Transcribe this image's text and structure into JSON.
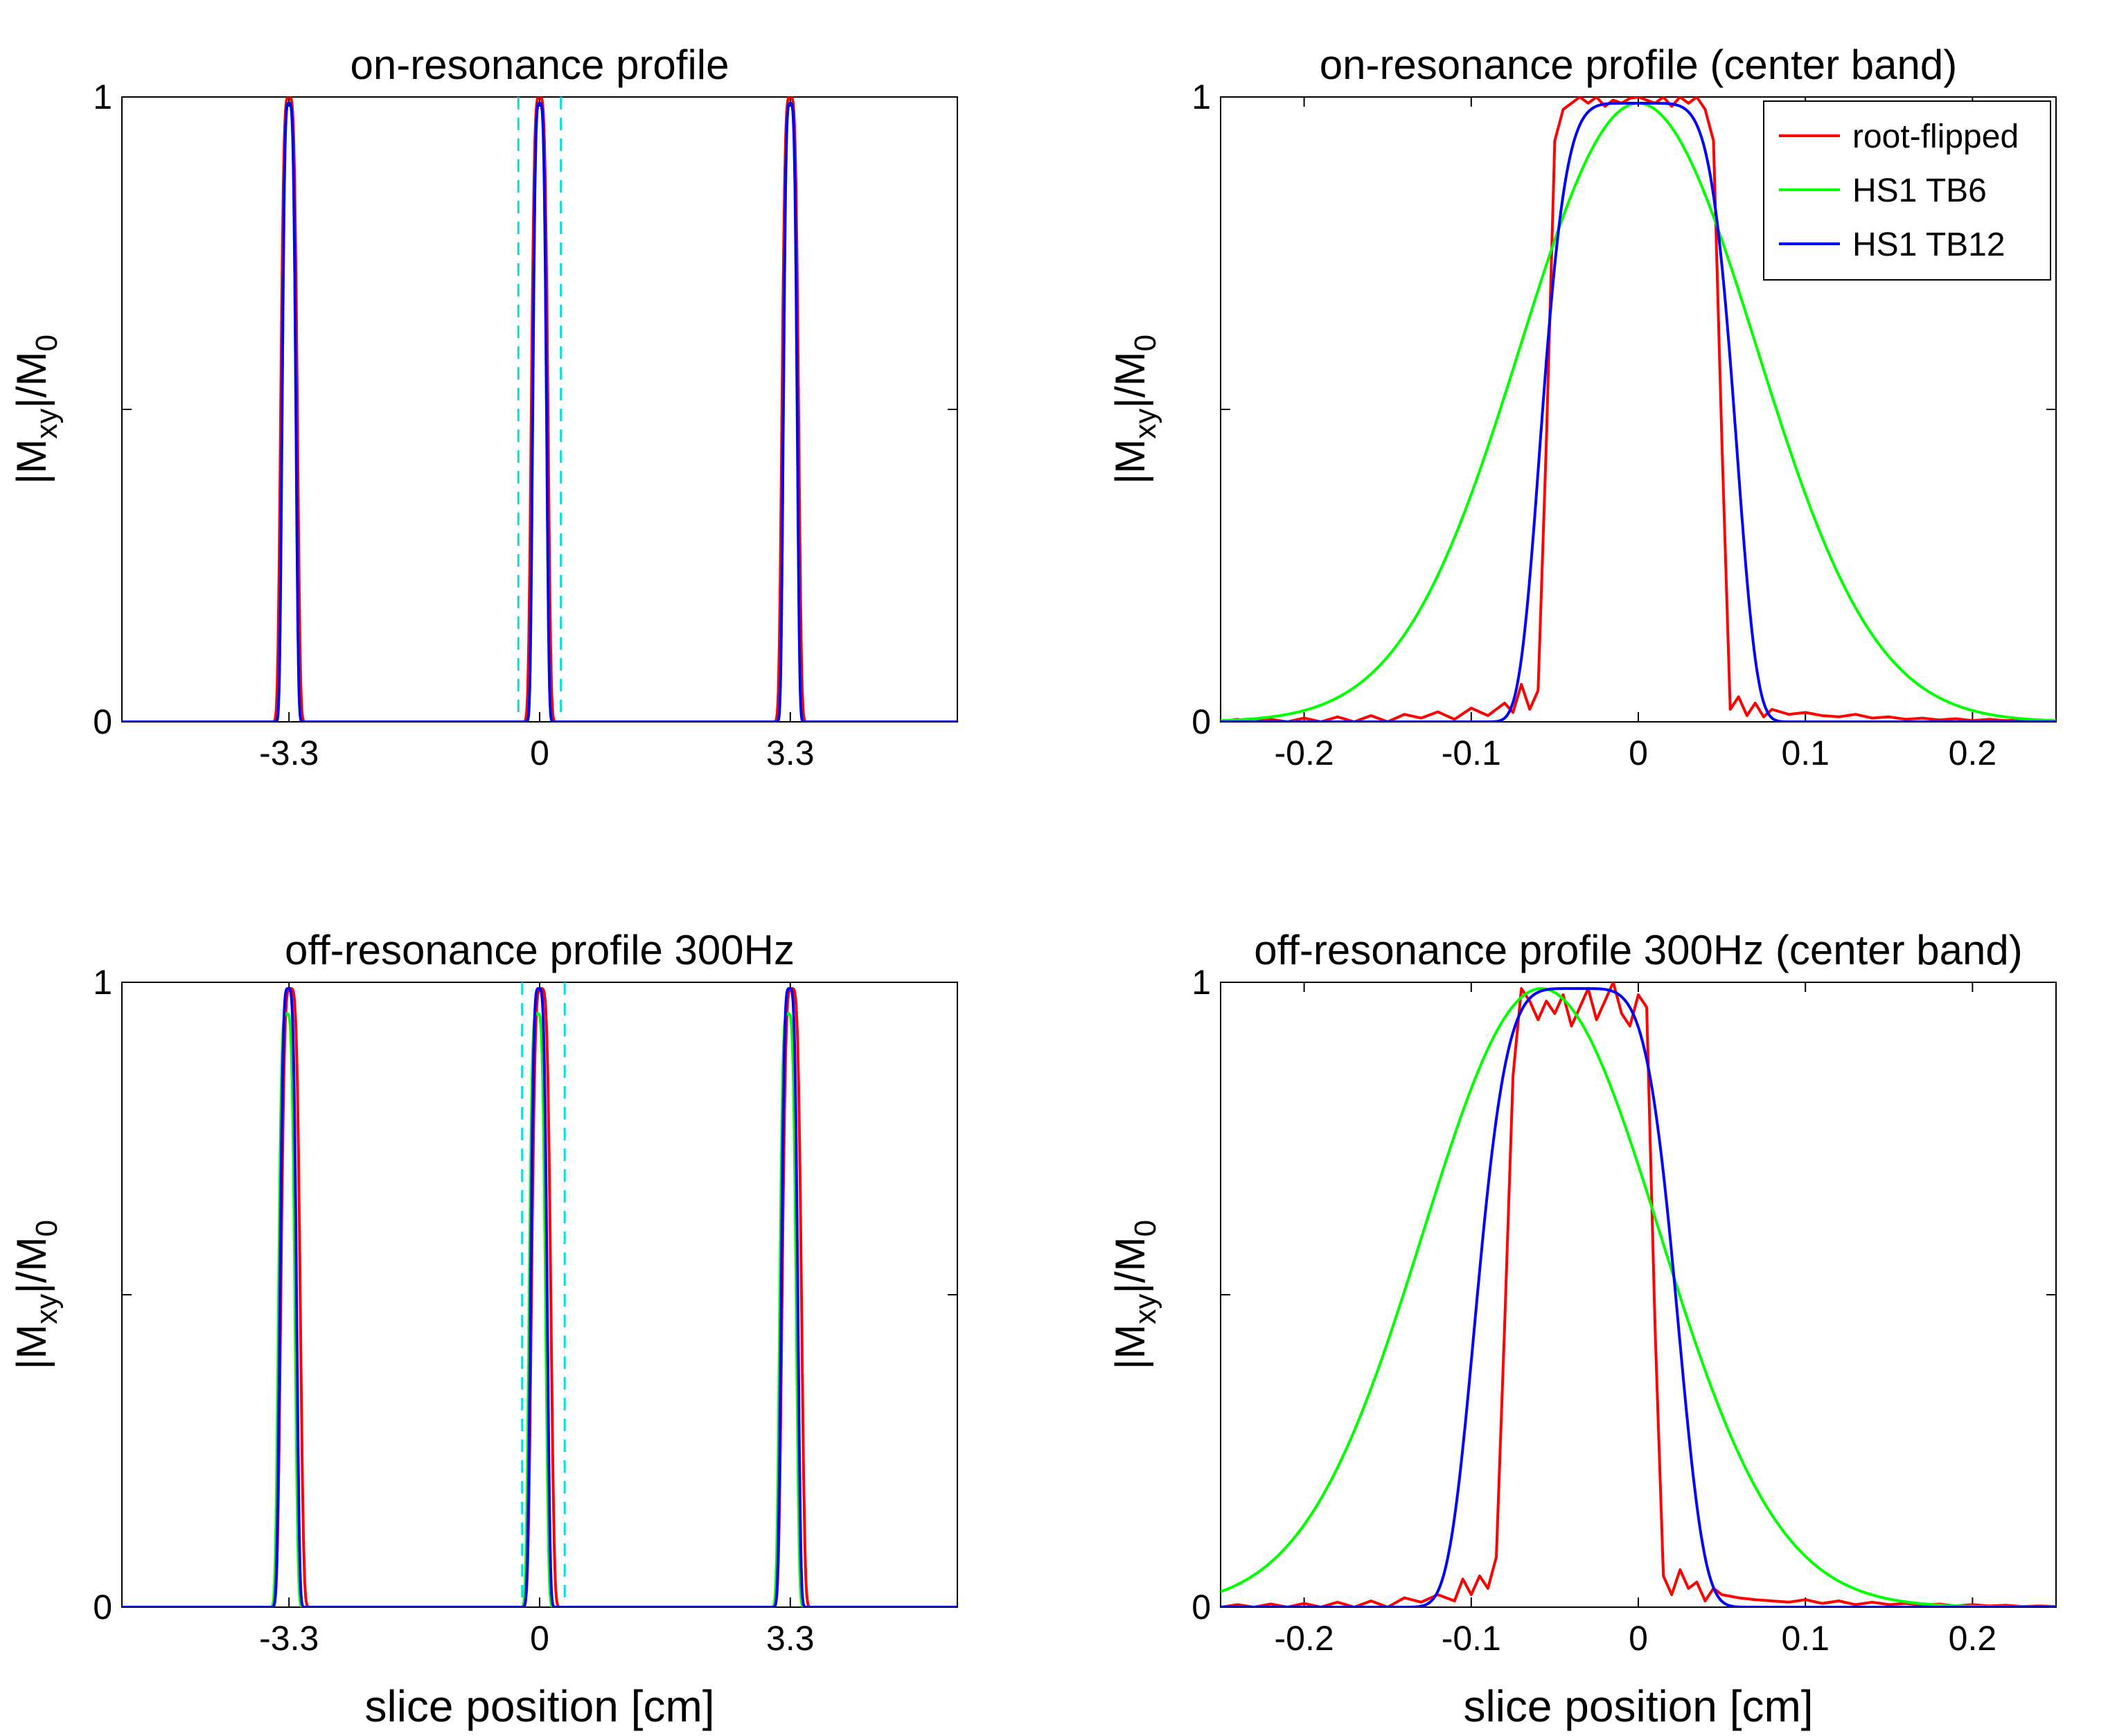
{
  "figure": {
    "panel_count": 4,
    "shared_legend": true
  },
  "legend": {
    "items": [
      {
        "label": "root-flipped",
        "color": "#ff0000"
      },
      {
        "label": "HS1 TB6",
        "color": "#00ff00"
      },
      {
        "label": "HS1 TB12",
        "color": "#0000ff"
      }
    ],
    "placement": "top-right of panel 2"
  },
  "chart_data": [
    {
      "type": "line",
      "title": "on-resonance profile",
      "xlabel": "",
      "ylabel_parts": [
        "|M",
        "xy",
        "|/M",
        "0"
      ],
      "xlim": [
        -5.5,
        5.5
      ],
      "ylim": [
        0,
        1
      ],
      "xticks": [
        -3.3,
        0,
        3.3
      ],
      "xticklabels": [
        "-3.3",
        "0",
        "3.3"
      ],
      "yticks": [
        0,
        0.5,
        1
      ],
      "yticklabels": [
        "0",
        "",
        "1"
      ],
      "marker_lines": {
        "x": [
          -0.28,
          0.28
        ],
        "color": "#00e0e0",
        "style": "dashed"
      },
      "series": [
        {
          "name": "root-flipped",
          "color": "#ff0000",
          "shape": "peaks",
          "centers": [
            -3.3,
            0,
            3.3
          ],
          "width": 0.12,
          "height": 1.0,
          "offset": 0
        },
        {
          "name": "HS1 TB6",
          "color": "#00ff00",
          "shape": "peaks",
          "centers": [
            -3.3,
            0,
            3.3
          ],
          "width": 0.1,
          "height": 0.99,
          "offset": 0
        },
        {
          "name": "HS1 TB12",
          "color": "#0000ff",
          "shape": "peaks",
          "centers": [
            -3.3,
            0,
            3.3
          ],
          "width": 0.1,
          "height": 0.99,
          "offset": 0
        }
      ]
    },
    {
      "type": "line",
      "title": "on-resonance profile (center band)",
      "xlabel": "",
      "ylabel_parts": [
        "|M",
        "xy",
        "|/M",
        "0"
      ],
      "xlim": [
        -0.25,
        0.25
      ],
      "ylim": [
        0,
        1
      ],
      "xticks": [
        -0.2,
        -0.1,
        0,
        0.1,
        0.2
      ],
      "xticklabels": [
        "-0.2",
        "-0.1",
        "0",
        "0.1",
        "0.2"
      ],
      "yticks": [
        0,
        0.5,
        1
      ],
      "yticklabels": [
        "0",
        "",
        "1"
      ],
      "legend": true,
      "series": [
        {
          "name": "root-flipped",
          "color": "#ff0000",
          "shape": "points",
          "x": [
            -0.25,
            -0.24,
            -0.23,
            -0.22,
            -0.21,
            -0.2,
            -0.19,
            -0.18,
            -0.17,
            -0.16,
            -0.15,
            -0.14,
            -0.13,
            -0.12,
            -0.11,
            -0.1,
            -0.09,
            -0.08,
            -0.075,
            -0.07,
            -0.065,
            -0.06,
            -0.055,
            -0.05,
            -0.045,
            -0.04,
            -0.035,
            -0.03,
            -0.025,
            -0.02,
            -0.015,
            -0.01,
            -0.005,
            0,
            0.005,
            0.01,
            0.015,
            0.02,
            0.025,
            0.03,
            0.035,
            0.04,
            0.045,
            0.05,
            0.055,
            0.06,
            0.065,
            0.07,
            0.075,
            0.08,
            0.09,
            0.1,
            0.11,
            0.12,
            0.13,
            0.14,
            0.15,
            0.16,
            0.17,
            0.18,
            0.19,
            0.2,
            0.21,
            0.22,
            0.23,
            0.24,
            0.25
          ],
          "y": [
            0,
            0.004,
            0,
            0.004,
            0,
            0.006,
            0,
            0.008,
            0,
            0.01,
            0,
            0.012,
            0.006,
            0.016,
            0.004,
            0.022,
            0.01,
            0.03,
            0.015,
            0.06,
            0.02,
            0.05,
            0.45,
            0.93,
            0.98,
            0.99,
            1.0,
            0.99,
            1.0,
            0.985,
            0.995,
            0.99,
            0.998,
            1.0,
            0.995,
            0.99,
            1.0,
            0.985,
            1.0,
            0.99,
            1.0,
            0.98,
            0.93,
            0.45,
            0.02,
            0.04,
            0.01,
            0.03,
            0.008,
            0.02,
            0.012,
            0.015,
            0.01,
            0.008,
            0.012,
            0.006,
            0.008,
            0.004,
            0.006,
            0.003,
            0.005,
            0.002,
            0.004,
            0.002,
            0.003,
            0.001,
            0.002
          ]
        },
        {
          "name": "HS1 TB6",
          "color": "#00ff00",
          "shape": "gauss",
          "center": 0,
          "width": 0.1,
          "height": 0.99,
          "exponent": 2
        },
        {
          "name": "HS1 TB12",
          "color": "#0000ff",
          "shape": "gauss",
          "center": 0,
          "width": 0.061,
          "height": 0.99,
          "exponent": 6
        }
      ]
    },
    {
      "type": "line",
      "title": "off-resonance profile 300Hz",
      "xlabel": "slice position [cm]",
      "ylabel_parts": [
        "|M",
        "xy",
        "|/M",
        "0"
      ],
      "xlim": [
        -5.5,
        5.5
      ],
      "ylim": [
        0,
        1
      ],
      "xticks": [
        -3.3,
        0,
        3.3
      ],
      "xticklabels": [
        "-3.3",
        "0",
        "3.3"
      ],
      "yticks": [
        0,
        0.5,
        1
      ],
      "yticklabels": [
        "0",
        "",
        "1"
      ],
      "marker_lines": {
        "x": [
          -0.23,
          0.33
        ],
        "color": "#00e0e0",
        "style": "dashed"
      },
      "series": [
        {
          "name": "root-flipped",
          "color": "#ff0000",
          "shape": "peaks",
          "centers": [
            -3.3,
            0,
            3.3
          ],
          "width": 0.14,
          "height": 0.99,
          "offset": 0.02
        },
        {
          "name": "HS1 TB6",
          "color": "#00ff00",
          "shape": "peaks",
          "centers": [
            -3.3,
            0,
            3.3
          ],
          "width": 0.12,
          "height": 0.95,
          "offset": -0.03
        },
        {
          "name": "HS1 TB12",
          "color": "#0000ff",
          "shape": "peaks",
          "centers": [
            -3.3,
            0,
            3.3
          ],
          "width": 0.12,
          "height": 0.99,
          "offset": -0.01
        }
      ]
    },
    {
      "type": "line",
      "title": "off-resonance profile 300Hz (center band)",
      "xlabel": "slice position [cm]",
      "ylabel_parts": [
        "|M",
        "xy",
        "|/M",
        "0"
      ],
      "xlim": [
        -0.25,
        0.25
      ],
      "ylim": [
        0,
        1
      ],
      "xticks": [
        -0.2,
        -0.1,
        0,
        0.1,
        0.2
      ],
      "xticklabels": [
        "-0.2",
        "-0.1",
        "0",
        "0.1",
        "0.2"
      ],
      "yticks": [
        0,
        0.5,
        1
      ],
      "yticklabels": [
        "0",
        "",
        "1"
      ],
      "series": [
        {
          "name": "root-flipped",
          "color": "#ff0000",
          "shape": "points",
          "x": [
            -0.25,
            -0.24,
            -0.23,
            -0.22,
            -0.21,
            -0.2,
            -0.19,
            -0.18,
            -0.17,
            -0.16,
            -0.15,
            -0.14,
            -0.13,
            -0.12,
            -0.11,
            -0.105,
            -0.1,
            -0.095,
            -0.09,
            -0.085,
            -0.08,
            -0.075,
            -0.07,
            -0.065,
            -0.06,
            -0.055,
            -0.05,
            -0.045,
            -0.04,
            -0.035,
            -0.03,
            -0.025,
            -0.02,
            -0.015,
            -0.01,
            -0.005,
            0,
            0.005,
            0.01,
            0.015,
            0.02,
            0.025,
            0.03,
            0.035,
            0.04,
            0.045,
            0.05,
            0.06,
            0.07,
            0.08,
            0.09,
            0.1,
            0.11,
            0.12,
            0.13,
            0.14,
            0.15,
            0.16,
            0.17,
            0.18,
            0.19,
            0.2,
            0.21,
            0.22,
            0.23,
            0.24,
            0.25
          ],
          "y": [
            0,
            0.004,
            0,
            0.005,
            0,
            0.006,
            0,
            0.008,
            0,
            0.01,
            0,
            0.015,
            0.008,
            0.02,
            0.01,
            0.045,
            0.02,
            0.05,
            0.03,
            0.08,
            0.45,
            0.85,
            0.99,
            0.97,
            0.94,
            0.97,
            0.95,
            0.98,
            0.93,
            0.96,
            0.99,
            0.94,
            0.97,
            1.0,
            0.95,
            0.93,
            0.98,
            0.96,
            0.45,
            0.05,
            0.02,
            0.06,
            0.03,
            0.04,
            0.01,
            0.03,
            0.02,
            0.015,
            0.012,
            0.01,
            0.008,
            0.012,
            0.006,
            0.01,
            0.004,
            0.008,
            0.004,
            0.006,
            0.003,
            0.005,
            0.002,
            0.004,
            0.002,
            0.003,
            0.001,
            0.002,
            0.001
          ]
        },
        {
          "name": "HS1 TB6",
          "color": "#00ff00",
          "shape": "gauss",
          "center": -0.058,
          "width": 0.1,
          "height": 0.99,
          "exponent": 2
        },
        {
          "name": "HS1 TB12",
          "color": "#0000ff",
          "shape": "gauss",
          "center": -0.037,
          "width": 0.064,
          "height": 0.99,
          "exponent": 5
        }
      ]
    }
  ]
}
